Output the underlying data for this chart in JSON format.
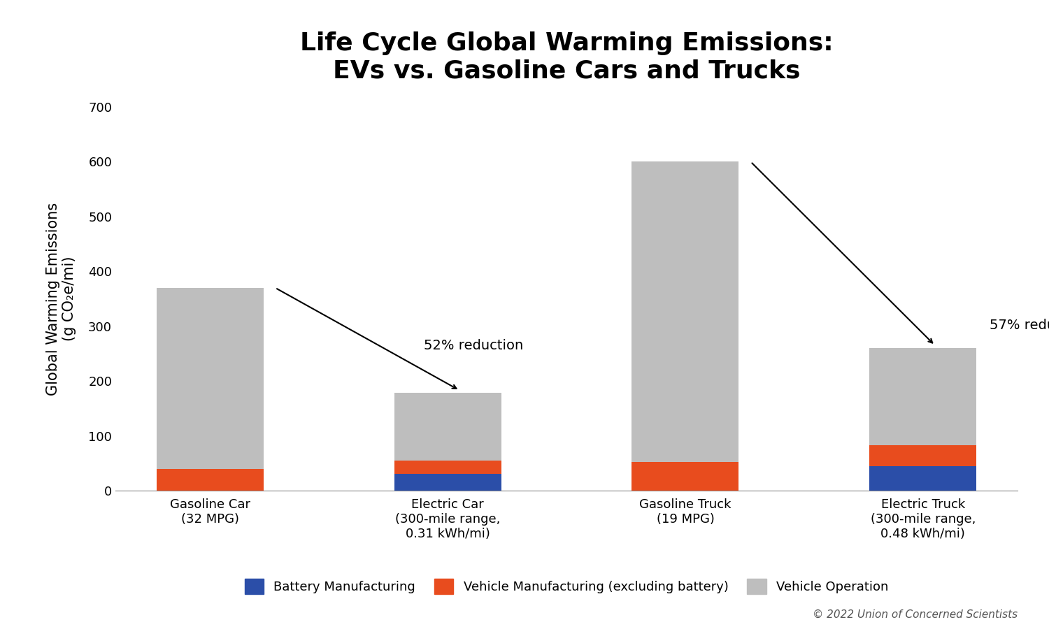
{
  "title_line1": "Life Cycle Global Warming Emissions:",
  "title_line2": "EVs vs. Gasoline Cars and Trucks",
  "ylabel": "Global Warming Emissions\n(g CO₂e/mi)",
  "categories": [
    "Gasoline Car\n(32 MPG)",
    "Electric Car\n(300-mile range,\n0.31 kWh/mi)",
    "Gasoline Truck\n(19 MPG)",
    "Electric Truck\n(300-mile range,\n0.48 kWh/mi)"
  ],
  "battery_manufacturing": [
    0,
    30,
    0,
    45
  ],
  "vehicle_manufacturing": [
    40,
    25,
    52,
    38
  ],
  "vehicle_operation": [
    330,
    123,
    548,
    177
  ],
  "colors": {
    "battery": "#2B4EA8",
    "vehicle_mfg": "#E84C1E",
    "operation": "#BEBEBE"
  },
  "ylim": [
    0,
    700
  ],
  "yticks": [
    0,
    100,
    200,
    300,
    400,
    500,
    600,
    700
  ],
  "legend_labels": [
    "Battery Manufacturing",
    "Vehicle Manufacturing (excluding battery)",
    "Vehicle Operation"
  ],
  "copyright": "© 2022 Union of Concerned Scientists",
  "background_color": "#FFFFFF",
  "bar_width": 0.45,
  "title_fontsize": 26,
  "axis_label_fontsize": 15,
  "tick_fontsize": 13,
  "annotation_fontsize": 14,
  "legend_fontsize": 13,
  "copyright_fontsize": 11
}
